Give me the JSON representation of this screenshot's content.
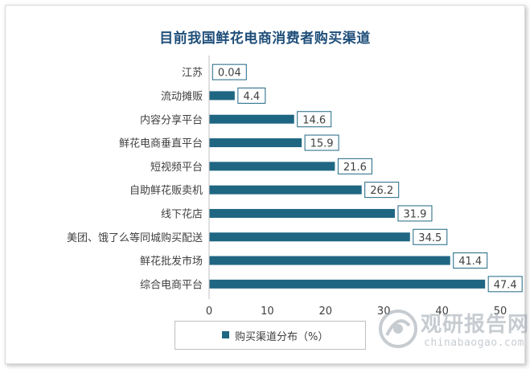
{
  "chart_data": {
    "type": "bar",
    "orientation": "horizontal",
    "title": "目前我国鲜花电商消费者购买渠道",
    "categories": [
      "江苏",
      "流动摊贩",
      "内容分享平台",
      "鲜花电商垂直平台",
      "短视频平台",
      "自助鲜花贩卖机",
      "线下花店",
      "美团、饿了么等同城购买配送",
      "鲜花批发市场",
      "综合电商平台"
    ],
    "value_labels": [
      "0.04",
      "4.4",
      "14.6",
      "15.9",
      "21.6",
      "26.2",
      "31.9",
      "34.5",
      "41.4",
      "47.4"
    ],
    "series": [
      {
        "name": "购买渠道分布（%）",
        "values": [
          0.04,
          4.4,
          14.6,
          15.9,
          21.6,
          26.2,
          31.9,
          34.5,
          41.4,
          47.4
        ]
      }
    ],
    "xlim": [
      0,
      50
    ],
    "xticks": [
      "0",
      "10",
      "20",
      "30",
      "40",
      "50"
    ],
    "bar_color": "#1f6683",
    "grid": false,
    "legend_position": "bottom"
  },
  "watermark": {
    "cn": "观研报告网",
    "en": "chinabaogao.com"
  }
}
